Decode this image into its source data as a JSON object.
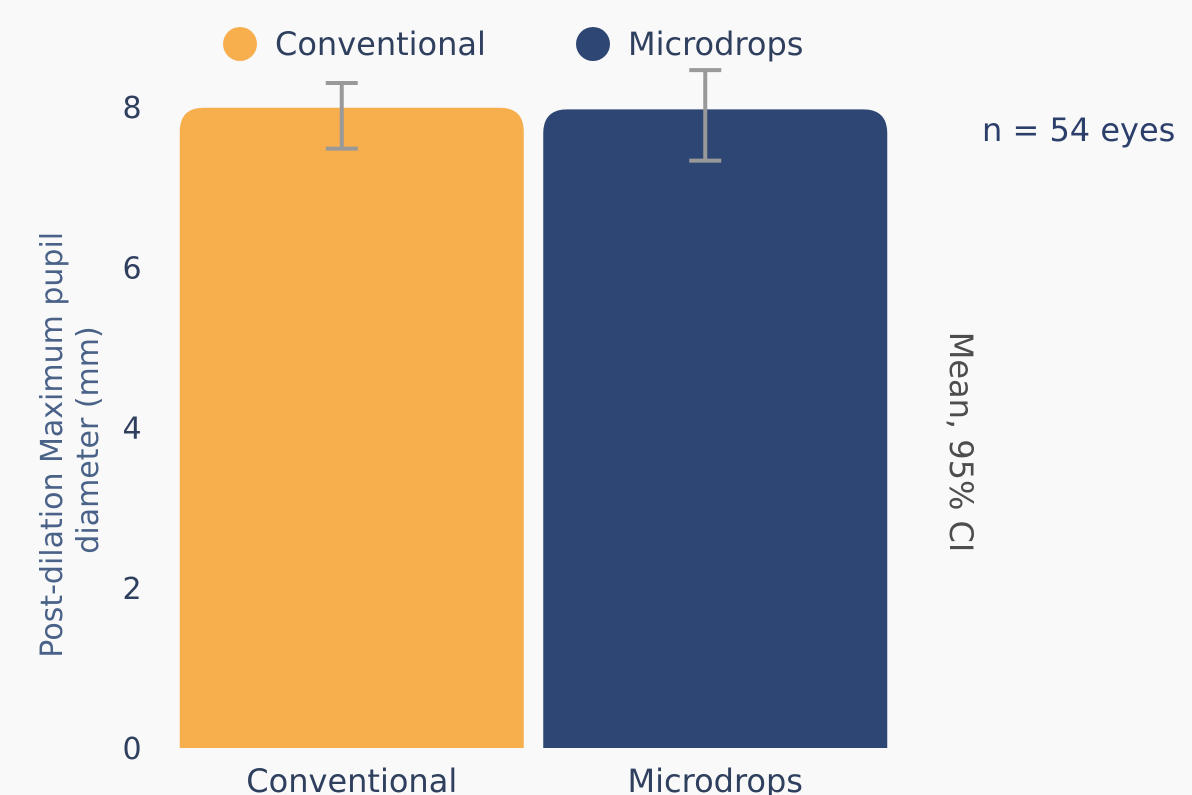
{
  "chart_data": {
    "type": "bar",
    "categories": [
      "Conventional",
      "Microdrops"
    ],
    "series": [
      {
        "name": "Conventional",
        "values": [
          7.99,
          null
        ],
        "ci_low": [
          7.48,
          null
        ],
        "ci_high": [
          8.3,
          null
        ],
        "color": "#f7ae4c"
      },
      {
        "name": "Microdrops",
        "values": [
          null,
          7.97
        ],
        "ci_low": [
          null,
          7.33
        ],
        "ci_high": [
          null,
          8.46
        ],
        "color": "#2e4673"
      }
    ],
    "xlabel": "",
    "ylabel": "Post-dilation Maximum pupil diameter (mm)",
    "ylim": [
      0,
      8.3
    ],
    "yticks": [
      "0",
      "2",
      "4",
      "6",
      "8"
    ],
    "legend_position": "top",
    "annotations": {
      "sample_size": "n = 54 eyes",
      "error_bar_note": "Mean, 95% CI"
    },
    "errorbar_color": "#999999",
    "grid": false
  }
}
